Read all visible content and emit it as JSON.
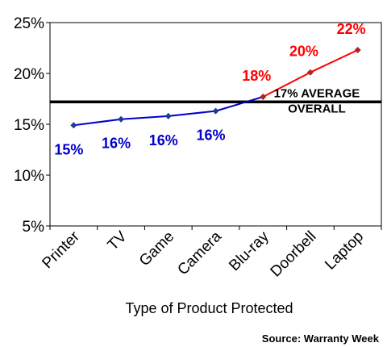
{
  "chart_data": {
    "type": "line",
    "categories": [
      "Printer",
      "TV",
      "Game",
      "Camera",
      "Blu-ray",
      "Doorbell",
      "Laptop"
    ],
    "values": [
      14.9,
      15.5,
      15.8,
      16.3,
      17.7,
      20.1,
      22.3
    ],
    "data_labels": [
      "15%",
      "16%",
      "16%",
      "16%",
      "18%",
      "20%",
      "22%"
    ],
    "ylim": [
      5,
      25
    ],
    "yticks": [
      5,
      10,
      15,
      20,
      25
    ],
    "ytick_labels": [
      "5%",
      "10%",
      "15%",
      "20%",
      "25%"
    ],
    "xlabel": "Type of Product Protected",
    "average": {
      "value": 17.2,
      "label_line1": "17% AVERAGE",
      "label_line2": "OVERALL"
    },
    "colors": {
      "low_series": "#0000cc",
      "high_series": "#ff0000",
      "marker_low": "#1f3b99",
      "marker_high": "#b22222",
      "average_line": "#000000"
    },
    "color_split_index": 4,
    "source": "Source: Warranty Week",
    "grid": false,
    "legend": "none"
  }
}
